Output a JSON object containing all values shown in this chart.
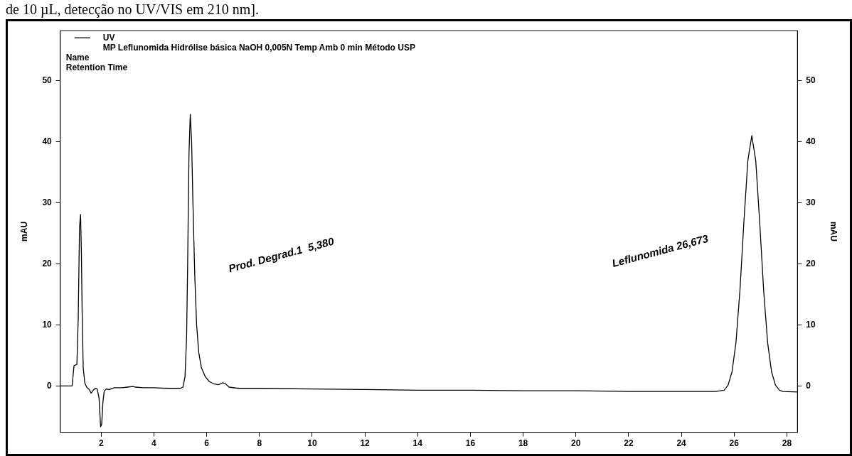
{
  "chart_data": {
    "type": "line",
    "title": "de 10 µL, detecção no UV/VIS em 210 nm].",
    "ylabel": "mAU",
    "y2label": "mAU",
    "annotations": [
      "MP Leflunomida Hidrólise básica NaOH 0,005N Temp Amb 0 min Método USP",
      "Name",
      "Retention Time",
      "Prod. Degrad.1  5,380",
      "Leflunomida 26,673"
    ],
    "series": [
      {
        "name": "UV",
        "color": "#000000",
        "x": [
          0.45,
          0.9,
          0.97,
          1.08,
          1.13,
          1.18,
          1.22,
          1.25,
          1.28,
          1.32,
          1.38,
          1.45,
          1.55,
          1.62,
          1.7,
          1.78,
          1.85,
          1.92,
          1.98,
          2.02,
          2.07,
          2.12,
          2.2,
          2.3,
          2.5,
          2.8,
          3.0,
          3.2,
          3.3,
          3.6,
          4.0,
          4.5,
          5.0,
          5.1,
          5.18,
          5.24,
          5.28,
          5.33,
          5.38,
          5.43,
          5.48,
          5.55,
          5.62,
          5.7,
          5.8,
          5.95,
          6.1,
          6.3,
          6.45,
          6.6,
          6.7,
          6.85,
          7.2,
          8,
          10,
          12,
          14,
          16,
          18,
          20,
          22,
          24,
          25.3,
          25.62,
          25.77,
          25.92,
          26.07,
          26.22,
          26.37,
          26.52,
          26.67,
          26.82,
          26.97,
          27.12,
          27.27,
          27.42,
          27.57,
          27.72,
          27.85,
          28.4
        ],
        "values": [
          0,
          0,
          3.3,
          3.5,
          11,
          26,
          28.1,
          22,
          12,
          3,
          0.5,
          -0.2,
          -0.6,
          -1.2,
          -0.7,
          -0.4,
          -0.5,
          -2,
          -6.7,
          -6.3,
          -2.5,
          -0.8,
          -0.5,
          -0.6,
          -0.3,
          -0.3,
          -0.2,
          -0.1,
          -0.2,
          -0.3,
          -0.3,
          -0.4,
          -0.4,
          -0.2,
          1.5,
          8,
          20,
          38,
          44.5,
          40,
          30,
          18,
          10,
          5.5,
          3,
          1.5,
          0.7,
          0.3,
          0.2,
          0.5,
          0.4,
          -0.2,
          -0.4,
          -0.4,
          -0.5,
          -0.6,
          -0.7,
          -0.7,
          -0.8,
          -0.8,
          -0.9,
          -0.9,
          -0.9,
          -0.7,
          0.1,
          2.3,
          7.1,
          15.6,
          26.8,
          36.9,
          41,
          36.9,
          26.8,
          15.6,
          7.1,
          2.3,
          0.1,
          -0.7,
          -0.9,
          -1.0
        ]
      }
    ],
    "xlim": [
      0.45,
      28.4
    ],
    "xticks": [
      2,
      4,
      6,
      8,
      10,
      12,
      14,
      16,
      18,
      20,
      22,
      24,
      26,
      28
    ],
    "ylim": [
      -7.6,
      58.2
    ],
    "yticks": [
      0,
      10,
      20,
      30,
      40,
      50
    ],
    "y2lim": [
      -7.6,
      58.2
    ],
    "y2ticks": [
      0,
      10,
      20,
      30,
      40,
      50
    ],
    "grid": false,
    "legend": "top left",
    "marker": "none",
    "line_style": "solid"
  }
}
